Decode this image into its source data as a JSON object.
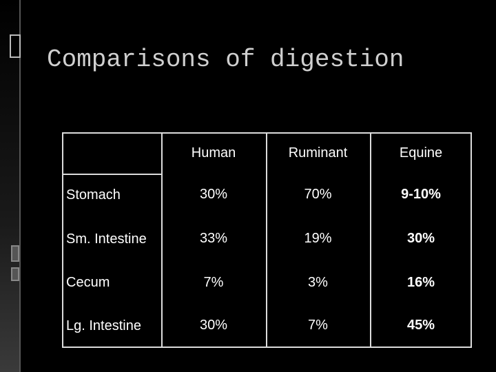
{
  "title": "Comparisons of digestion",
  "table": {
    "columns": [
      "Human",
      "Ruminant",
      "Equine"
    ],
    "rows": [
      {
        "label": "Stomach",
        "cells": [
          "30%",
          "70%",
          "9-10%"
        ]
      },
      {
        "label": "Sm. Intestine",
        "cells": [
          "33%",
          "19%",
          "30%"
        ]
      },
      {
        "label": "Cecum",
        "cells": [
          "7%",
          "3%",
          "16%"
        ]
      },
      {
        "label": "Lg. Intestine",
        "cells": [
          "30%",
          "7%",
          "45%"
        ]
      }
    ]
  }
}
